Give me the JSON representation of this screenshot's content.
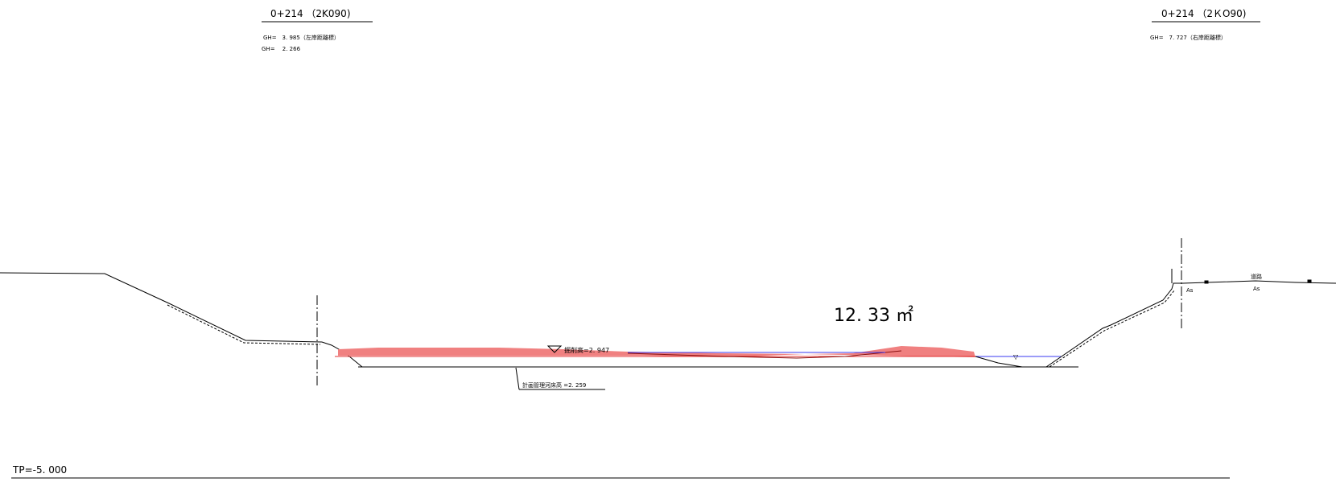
{
  "left_station": {
    "title": "0+214 （2K090)",
    "gh_lines": [
      "GH=　3. 985（左岸距離標）",
      "GH=　 2. 266"
    ]
  },
  "right_station": {
    "title": "0+214 （2ＫO90)",
    "gh_lines": [
      "GH=　7. 727（右岸距離標）"
    ]
  },
  "labels": {
    "excavation_height": "掘削高=2. 947",
    "planned_riverbed": "計画管理河床高 =2. 259",
    "area": "12. 33 ㎡",
    "road": "道路",
    "as_left": "As",
    "as_right": "As",
    "tp": "TP=-5. 000"
  },
  "colors": {
    "excavation_fill": "#f08080",
    "excavation_line": "#e03030",
    "water_line": "#3a3af0",
    "ink": "#000000"
  }
}
